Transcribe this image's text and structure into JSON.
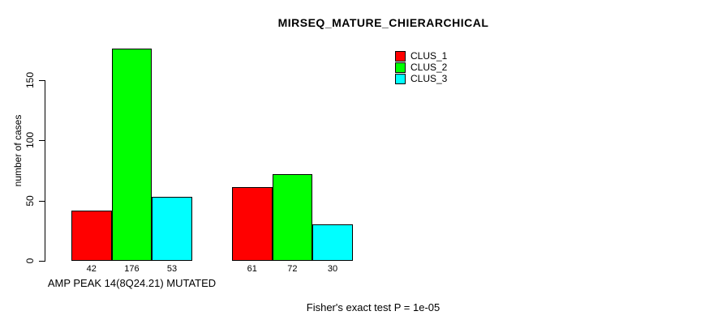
{
  "chart_data": {
    "type": "bar",
    "title": "MIRSEQ_MATURE_CHIERARCHICAL",
    "ylabel": "number of cases",
    "xlabel": "AMP PEAK 14(8Q24.21) MUTATED",
    "ylim": [
      0,
      150
    ],
    "y_ticks": [
      0,
      50,
      100,
      150
    ],
    "categories": [
      "AMP PEAK 14(8Q24.21) MUTATED",
      ""
    ],
    "series": [
      {
        "name": "CLUS_1",
        "color": "#FF0000",
        "values": [
          42,
          61
        ]
      },
      {
        "name": "CLUS_2",
        "color": "#00FF00",
        "values": [
          176,
          72
        ]
      },
      {
        "name": "CLUS_3",
        "color": "#00FFFF",
        "values": [
          53,
          30
        ]
      }
    ],
    "bar_value_labels": [
      [
        42,
        176,
        53
      ],
      [
        61,
        72,
        30
      ]
    ],
    "legend": {
      "position": "top-right",
      "entries": [
        "CLUS_1",
        "CLUS_2",
        "CLUS_3"
      ]
    },
    "annotation": "Fisher's exact test P = 1e-05",
    "grid": false,
    "axis_color": "#000000",
    "background_color": "#FFFFFF"
  }
}
